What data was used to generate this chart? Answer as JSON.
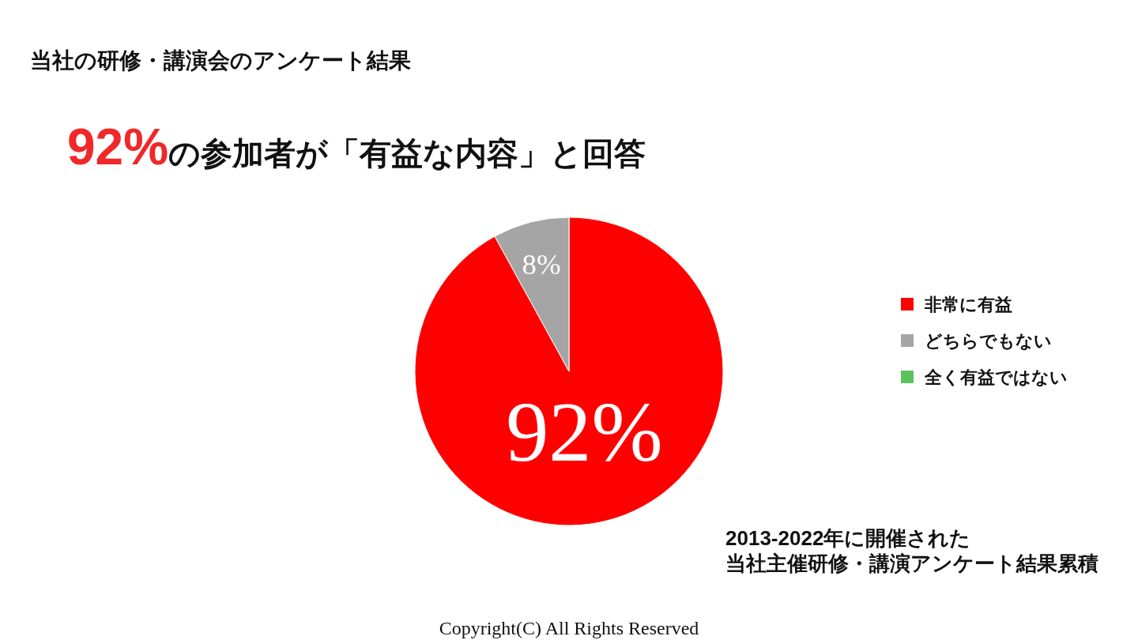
{
  "chart_data": {
    "type": "pie",
    "title": "当社の研修・講演会のアンケート結果",
    "subtitle": "**92%**の参加者が「有益な内容」と回答",
    "categories": [
      "非常に有益",
      "どちらでもない",
      "全く有益ではない"
    ],
    "values": [
      92,
      8,
      0
    ],
    "colors": [
      "#ff0000",
      "#a5a5a5",
      "#5cc35c"
    ],
    "value_labels": [
      "92%",
      "8%",
      null
    ],
    "legend": "right",
    "annotations": [
      "2013-2022年に開催された",
      "当社主催研修・講演アンケート結果累積",
      "Copyright(C) All Rights Reserved"
    ]
  }
}
